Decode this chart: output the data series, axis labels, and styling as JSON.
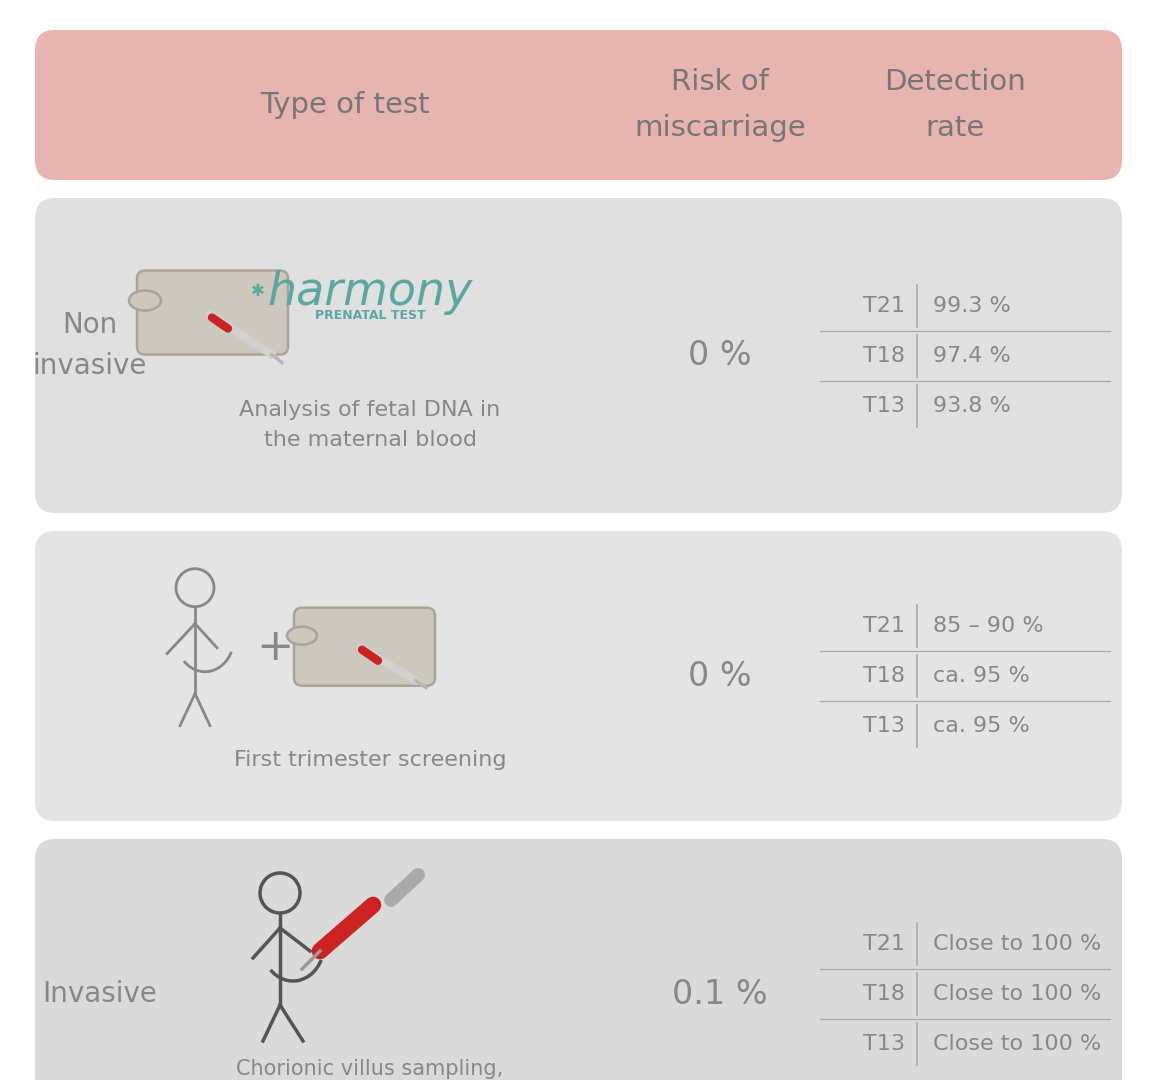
{
  "bg_color": "#ffffff",
  "header_color": "#e8b4b0",
  "section1_color": "#e0e0e0",
  "section2_color": "#e4e4e4",
  "section3_color": "#dadada",
  "text_color": "#888888",
  "teal_color": "#5ba8a0",
  "line_color": "#aaaaaa",
  "col_header1": "Type of test",
  "col_header2": "Risk of\nmiscarriage",
  "col_header3": "Detection\nrate",
  "row1_label": "Non\ninvasive",
  "row3_label": "Invasive",
  "test1_desc": "Analysis of fetal DNA in\nthe maternal blood",
  "test2_desc": "First trimester screening",
  "test3_desc": "Chorionic villus sampling,\namniocentesis",
  "risk1": "0 %",
  "risk2": "0 %",
  "risk3": "0.1 %",
  "detection1": [
    [
      "T21",
      "99.3 %"
    ],
    [
      "T18",
      "97.4 %"
    ],
    [
      "T13",
      "93.8 %"
    ]
  ],
  "detection2": [
    [
      "T21",
      "85 – 90 %"
    ],
    [
      "T18",
      "ca. 95 %"
    ],
    [
      "T13",
      "ca. 95 %"
    ]
  ],
  "detection3": [
    [
      "T21",
      "Close to 100 %"
    ],
    [
      "T18",
      "Close to 100 %"
    ],
    [
      "T13",
      "Close to 100 %"
    ]
  ],
  "harmony_text": "harmony",
  "harmony_sub": "PRENATAL TEST",
  "harmony_color": "#5ba8a0"
}
